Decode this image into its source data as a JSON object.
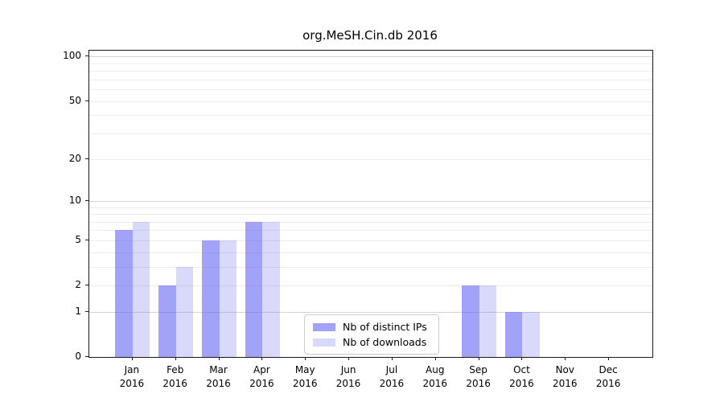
{
  "title": "org.MeSH.Cin.db 2016",
  "colors": {
    "distinct_ips": "rgba(105,105,245,0.62)",
    "downloads": "rgba(105,105,245,0.25)",
    "grid_minor": "#ededed",
    "grid_major": "#d4d4d4",
    "spine": "#1a1a1a",
    "legend_border": "#cccccc"
  },
  "legend": {
    "items": [
      {
        "label": "Nb of distinct IPs",
        "color_key": "distinct_ips"
      },
      {
        "label": "Nb of downloads",
        "color_key": "downloads"
      }
    ]
  },
  "chart_data": {
    "type": "bar",
    "title": "org.MeSH.Cin.db 2016",
    "categories": [
      "Jan 2016",
      "Feb 2016",
      "Mar 2016",
      "Apr 2016",
      "May 2016",
      "Jun 2016",
      "Jul 2016",
      "Aug 2016",
      "Sep 2016",
      "Oct 2016",
      "Nov 2016",
      "Dec 2016"
    ],
    "series": [
      {
        "name": "Nb of distinct IPs",
        "values": [
          6,
          2,
          5,
          7,
          0,
          0,
          0,
          0,
          2,
          1,
          0,
          0
        ]
      },
      {
        "name": "Nb of downloads",
        "values": [
          7,
          3,
          5,
          7,
          0,
          0,
          0,
          0,
          2,
          1,
          0,
          0
        ]
      }
    ],
    "xlabel": "",
    "ylabel": "",
    "yscale": "log10(1+v)",
    "yticks": [
      0,
      1,
      2,
      5,
      10,
      20,
      50,
      100
    ],
    "ylim": [
      0,
      110
    ],
    "grid": "horizontal, minor at 2-9/20-90, major at 1/10/100",
    "legend_position": "lower center inside plot"
  }
}
